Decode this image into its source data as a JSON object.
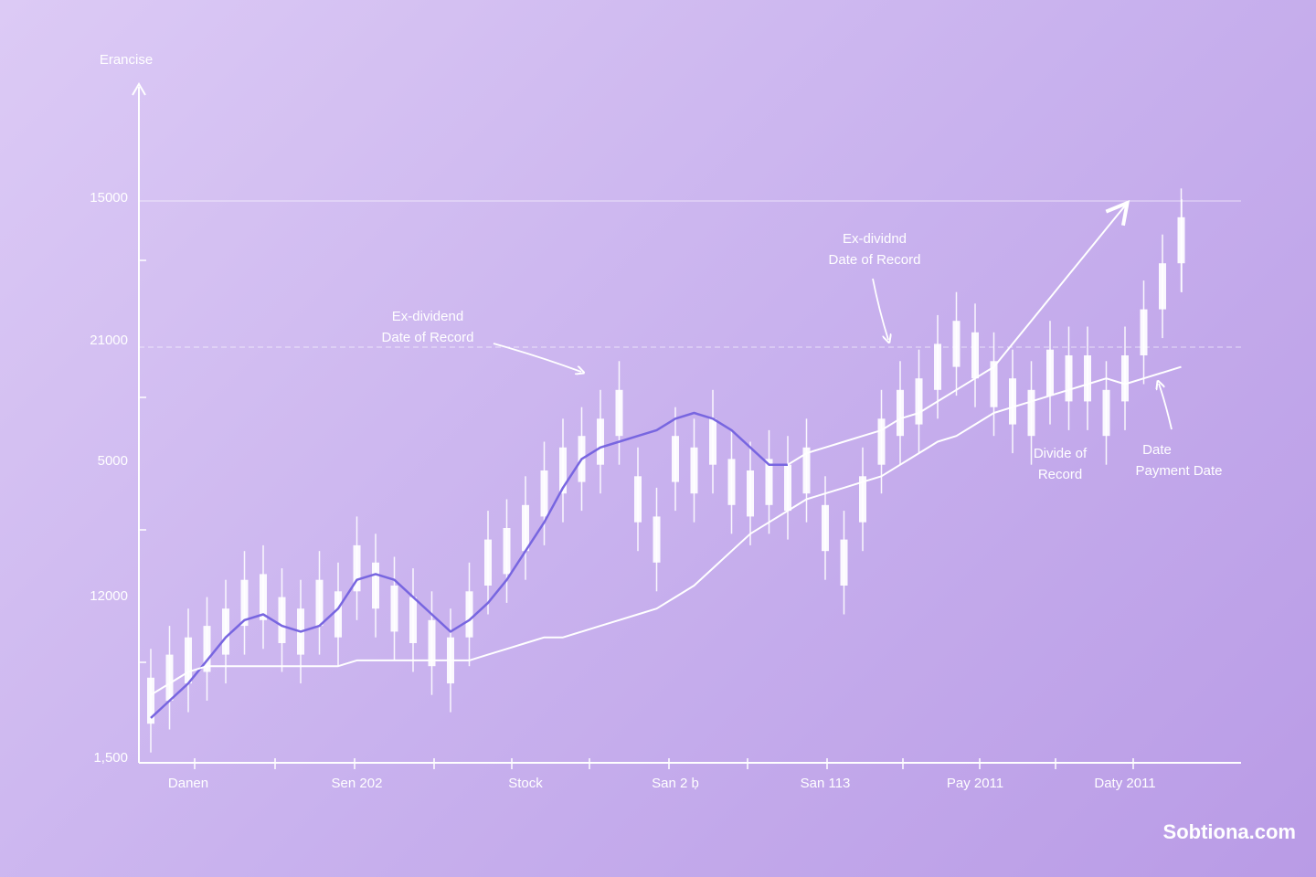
{
  "chart_data": {
    "type": "candlestick",
    "y_axis_title": "Erancise",
    "y_axis_labels": [
      "15000",
      "21000",
      "5000",
      "12000",
      "1,500"
    ],
    "categories": [
      null,
      null,
      "Danen",
      null,
      null,
      null,
      null,
      null,
      null,
      null,
      null,
      "Sen 202",
      null,
      null,
      null,
      null,
      null,
      null,
      null,
      null,
      "Stock",
      null,
      null,
      null,
      null,
      null,
      null,
      null,
      "San 2 ḅ",
      null,
      null,
      null,
      null,
      null,
      null,
      null,
      "San 113",
      null,
      null,
      null,
      null,
      null,
      null,
      null,
      "Pay 2011",
      null,
      null,
      null,
      null,
      null,
      null,
      null,
      "Daty 2011",
      null,
      null,
      null
    ],
    "open": [
      14,
      10,
      21,
      15,
      26,
      23,
      32,
      20,
      26,
      23,
      29,
      29,
      34,
      22,
      28,
      16,
      21,
      21,
      38,
      32,
      44,
      42,
      54,
      48,
      59,
      56,
      49,
      34,
      56,
      46,
      59,
      44,
      50,
      44,
      51,
      46,
      44,
      30,
      49,
      51,
      64,
      58,
      72,
      68,
      74,
      61,
      66,
      56,
      71,
      62,
      70,
      56,
      70,
      70,
      86,
      86
    ],
    "close": [
      6,
      18,
      13,
      23,
      18,
      31,
      24,
      28,
      18,
      31,
      21,
      37,
      26,
      30,
      20,
      24,
      13,
      29,
      30,
      40,
      36,
      50,
      46,
      56,
      51,
      64,
      41,
      42,
      48,
      54,
      51,
      52,
      42,
      52,
      43,
      54,
      36,
      38,
      41,
      59,
      56,
      66,
      64,
      76,
      66,
      69,
      58,
      64,
      63,
      70,
      62,
      64,
      62,
      78,
      78,
      94
    ],
    "high": [
      19,
      23,
      26,
      28,
      31,
      36,
      37,
      33,
      31,
      36,
      34,
      42,
      39,
      35,
      33,
      29,
      26,
      34,
      43,
      45,
      49,
      55,
      59,
      61,
      64,
      69,
      54,
      47,
      61,
      59,
      64,
      57,
      55,
      57,
      56,
      59,
      49,
      43,
      54,
      64,
      69,
      71,
      77,
      81,
      79,
      74,
      71,
      69,
      76,
      75,
      75,
      69,
      75,
      83,
      91,
      99
    ],
    "low": [
      1,
      5,
      8,
      10,
      13,
      18,
      19,
      15,
      13,
      18,
      16,
      24,
      21,
      17,
      15,
      11,
      8,
      16,
      25,
      27,
      31,
      37,
      41,
      43,
      46,
      51,
      36,
      29,
      43,
      41,
      46,
      39,
      37,
      39,
      38,
      41,
      31,
      25,
      36,
      46,
      51,
      53,
      59,
      63,
      61,
      56,
      53,
      51,
      58,
      57,
      57,
      51,
      57,
      65,
      73,
      81
    ],
    "candle_color": "#ffffff",
    "series": [
      {
        "color": "#7866e0",
        "values": [
          7,
          10,
          13,
          17,
          21,
          24,
          25,
          23,
          22,
          23,
          26,
          31,
          32,
          31,
          28,
          25,
          22,
          24,
          27,
          31,
          36,
          41,
          47,
          52,
          54,
          55,
          56,
          57,
          59,
          60,
          59,
          57,
          54,
          51,
          51,
          null,
          null,
          null,
          null,
          null,
          null,
          null,
          null,
          null,
          null,
          null,
          null,
          null,
          null,
          null,
          null,
          null,
          null,
          null,
          null,
          null
        ]
      },
      {
        "color": "#ffffff",
        "values": [
          null,
          null,
          null,
          null,
          null,
          null,
          null,
          null,
          null,
          null,
          null,
          null,
          null,
          null,
          null,
          null,
          null,
          null,
          null,
          null,
          null,
          null,
          null,
          null,
          null,
          null,
          null,
          null,
          null,
          null,
          null,
          null,
          null,
          null,
          51,
          53,
          54,
          55,
          56,
          57,
          59,
          60,
          62,
          64,
          66,
          68,
          72,
          76,
          80,
          84,
          88,
          92,
          96,
          null,
          null,
          null
        ]
      },
      {
        "color": "#ffffff",
        "values": [
          11,
          13,
          15,
          16,
          16,
          16,
          16,
          16,
          16,
          16,
          16,
          17,
          17,
          17,
          17,
          17,
          17,
          17,
          18,
          19,
          20,
          21,
          21,
          22,
          23,
          24,
          25,
          26,
          28,
          30,
          33,
          36,
          39,
          41,
          43,
          45,
          46,
          47,
          48,
          49,
          51,
          53,
          55,
          56,
          58,
          60,
          61,
          62,
          63,
          64,
          65,
          66,
          65,
          66,
          67,
          68
        ]
      }
    ],
    "ylim": [
      0,
      100
    ],
    "annotations": [
      {
        "lines": [
          "Ex-dividend",
          "Date of Record"
        ]
      },
      {
        "lines": [
          "Ex-dividnd",
          "Date of Record"
        ]
      },
      {
        "lines": [
          "Divide of",
          "Record"
        ]
      },
      {
        "lines": [
          "Date",
          "Payment Date"
        ]
      }
    ]
  },
  "watermark": "Sobtiona.com"
}
